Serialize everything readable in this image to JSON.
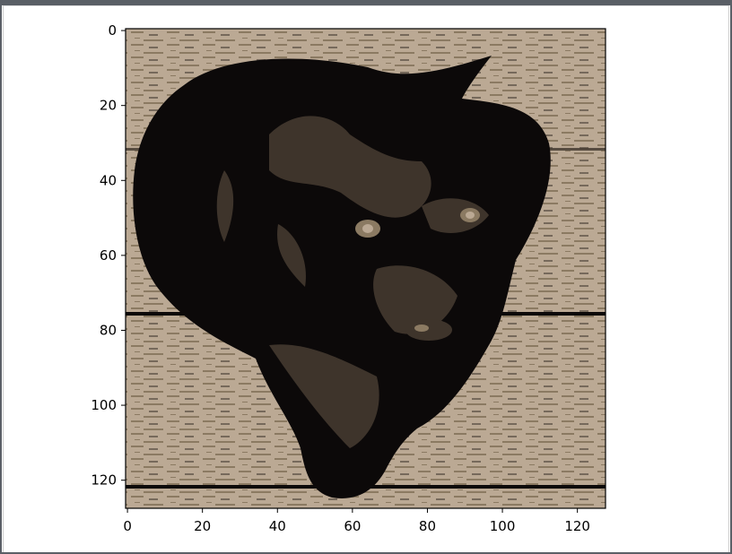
{
  "chart_data": {
    "type": "heatmap",
    "title": "",
    "xlabel": "",
    "ylabel": "",
    "xlim": [
      0,
      127
    ],
    "ylim": [
      127,
      0
    ],
    "xticks": [
      "0",
      "20",
      "40",
      "60",
      "80",
      "100",
      "120"
    ],
    "yticks": [
      "0",
      "20",
      "40",
      "60",
      "80",
      "100",
      "120"
    ],
    "grid": false,
    "image_description": "posterized 128x128 image of a black dog's head looking up, against a wooden plank background",
    "palette": [
      "#0c0909",
      "#3e342b",
      "#8b7a62",
      "#bba994"
    ]
  }
}
